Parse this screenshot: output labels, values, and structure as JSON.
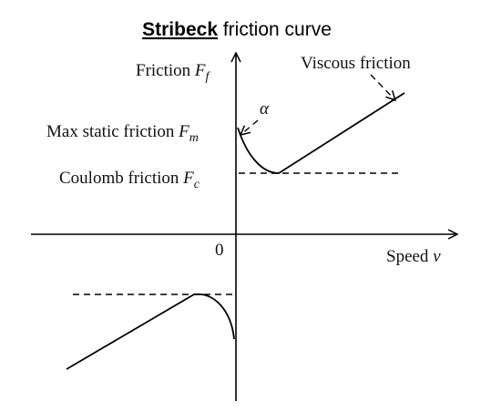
{
  "title": {
    "bold": "Stribeck",
    "rest": " friction curve"
  },
  "labels": {
    "friction": "Friction ",
    "friction_sym": "F",
    "friction_sub": "f",
    "viscous": "Viscous friction",
    "alpha": "α",
    "max_static": "Max static friction ",
    "max_static_sym": "F",
    "max_static_sub": "m",
    "coulomb": "Coulomb friction ",
    "coulomb_sym": "F",
    "coulomb_sub": "c",
    "origin": "0",
    "speed": "Speed ",
    "speed_sym": "v"
  }
}
